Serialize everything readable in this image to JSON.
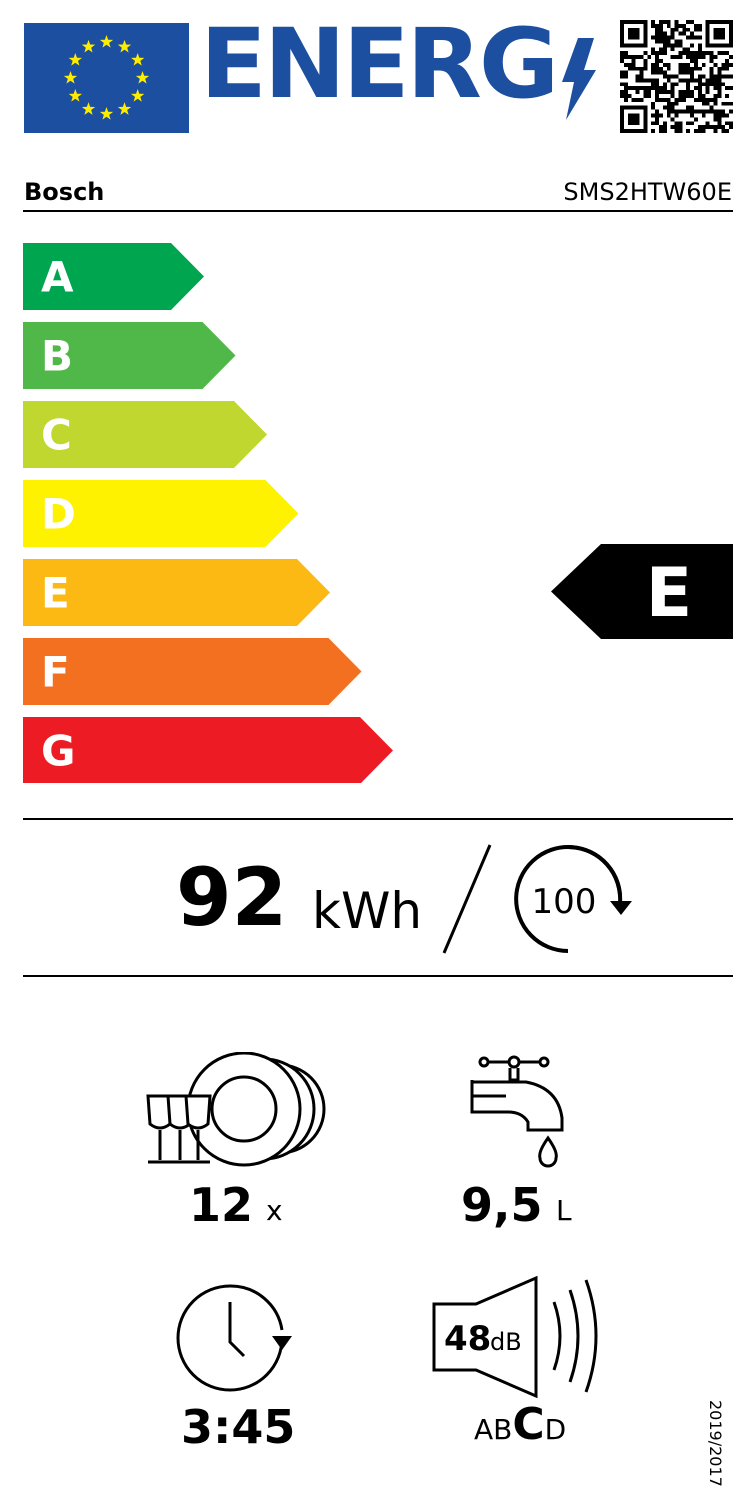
{
  "header": {
    "energy_word": "ENERG",
    "brand": "Bosch",
    "model": "SMS2HTW60E"
  },
  "scale": {
    "classes": [
      {
        "letter": "A",
        "color": "#00a54f"
      },
      {
        "letter": "B",
        "color": "#50b848"
      },
      {
        "letter": "C",
        "color": "#bfd72f"
      },
      {
        "letter": "D",
        "color": "#fff200"
      },
      {
        "letter": "E",
        "color": "#fdb913"
      },
      {
        "letter": "F",
        "color": "#f37021"
      },
      {
        "letter": "G",
        "color": "#ed1c24"
      }
    ],
    "rating": "E"
  },
  "consumption": {
    "value": "92",
    "unit": "kWh",
    "cycles": "100"
  },
  "specs": {
    "place_settings": {
      "value": "12",
      "unit": "x",
      "icon": "dishes-icon"
    },
    "water": {
      "value": "9,5",
      "unit": "L",
      "icon": "faucet-icon"
    },
    "duration": {
      "value": "3:45",
      "icon": "clock-icon"
    },
    "noise": {
      "value": "48",
      "unit": "dB",
      "icon": "speaker-icon",
      "class_scale": [
        "A",
        "B",
        "C",
        "D"
      ],
      "noise_class": "C"
    }
  },
  "regulation": "2019/2017",
  "colors": {
    "eu_blue": "#1d4fa0",
    "eu_star": "#ffed00"
  }
}
